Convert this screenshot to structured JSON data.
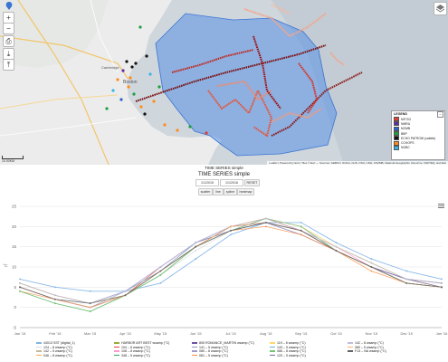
{
  "map": {
    "controls": [
      "+",
      "−",
      "⎙",
      "⤓",
      "⤒"
    ],
    "place_labels": [
      "Cambridge",
      "Boston"
    ],
    "legend": {
      "title": "LEGEND",
      "items": [
        {
          "label": "MITGG",
          "color": "#e53a2f"
        },
        {
          "label": "NMRA",
          "color": "#5e2ca5"
        },
        {
          "label": "NOMB",
          "color": "#2a63c9"
        },
        {
          "label": "BBP",
          "color": "#1d9e3e"
        },
        {
          "label": "ECHO PATROW (cableb)",
          "color": "#111111"
        },
        {
          "label": "CCHOPS",
          "color": "#ff8c1a"
        },
        {
          "label": "NGBC",
          "color": "#37b6e6"
        }
      ]
    },
    "attribution": "Leaflet | Powered by Esri | Tiles © Esri — Sources: GEBCO, NOAA, CHS, OSU, UNH, CSUMB, National Geographic, DeLorme, NAVTEQ, and Esri",
    "scale_label": "10.00KM"
  },
  "controls": {
    "title": "TIME SERIES simple",
    "subtitle": "TIME SERIES simple",
    "start_date": "1/1/2015",
    "end_date": "1/1/2016",
    "reset_label": "RESET",
    "chart_types": [
      "scatter",
      "line",
      "spline",
      "heatmap"
    ],
    "menu_icon": "hamburger-icon"
  },
  "chart_data": {
    "type": "line",
    "title": "",
    "xlabel": "",
    "ylabel": "°C",
    "x_ticks": [
      "Jan '15",
      "Feb '15",
      "Mar '15",
      "Apr '15",
      "May '15",
      "Jun '15",
      "Jul '15",
      "Aug '15",
      "Sep '15",
      "Oct '15",
      "Nov '15",
      "Dec '15",
      "Jan '16"
    ],
    "ylim": [
      -5,
      25
    ],
    "y_ticks": [
      25,
      20,
      15,
      10,
      5,
      0,
      -5
    ],
    "grid": true,
    "series": [
      {
        "name": "44013 SST (digital_1)",
        "color": "#7fb3e6",
        "values": [
          7,
          5,
          4,
          4,
          6,
          12,
          18,
          21,
          21,
          16,
          12,
          9,
          7
        ]
      },
      {
        "name": "124 – 8 wsamp (°C)",
        "color": "#d9d9d9",
        "values": [
          6,
          3,
          1,
          3,
          8,
          14,
          19,
          22,
          20,
          15,
          11,
          7,
          5
        ]
      },
      {
        "name": "142 – 5 wsamp (°C)",
        "color": "#c8b89a",
        "values": [
          5,
          2,
          1,
          3,
          9,
          15,
          19,
          21,
          19,
          14,
          10,
          7,
          5
        ]
      },
      {
        "name": "046 – 8 wsamp (°C)",
        "color": "#ffa64d",
        "values": [
          5,
          2,
          0,
          3,
          9,
          15,
          20,
          22,
          19,
          14,
          10,
          6,
          5
        ]
      },
      {
        "name": "HARBOR ART BEST wsamp (°C)",
        "color": "#9aaa3a",
        "values": [
          6,
          3,
          1,
          4,
          9,
          15,
          20,
          21,
          19,
          15,
          11,
          7,
          6
        ]
      },
      {
        "name": "104 – 8 wsamp (°C)",
        "color": "#e34a33",
        "values": [
          5,
          2,
          0,
          3,
          10,
          16,
          20,
          22,
          19,
          14,
          10,
          6,
          5
        ]
      },
      {
        "name": "108 – 8 wsamp (°C)",
        "color": "#ff99cc",
        "values": [
          5,
          2,
          1,
          4,
          9,
          16,
          20,
          21,
          19,
          15,
          10,
          7,
          5
        ]
      },
      {
        "name": "348 – 5 wsamp (°C)",
        "color": "#2ca25f",
        "values": [
          4,
          1,
          -1,
          3,
          8,
          15,
          19,
          21,
          19,
          14,
          10,
          6,
          5
        ]
      },
      {
        "name": "805 ROMANCE_MARTIN wsamp (°C)",
        "color": "#6a51a3",
        "values": [
          6,
          3,
          1,
          4,
          10,
          16,
          19,
          21,
          18,
          14,
          10,
          7,
          6
        ]
      },
      {
        "name": "141 – 5 wsamp (°C)",
        "color": "#8c96c6",
        "values": [
          5,
          2,
          0,
          3,
          9,
          15,
          19,
          22,
          20,
          14,
          10,
          6,
          5
        ]
      },
      {
        "name": "080 – 8 wsamp (°C)",
        "color": "#9e9ac8",
        "values": [
          5,
          2,
          0,
          4,
          10,
          16,
          20,
          21,
          18,
          14,
          10,
          7,
          5
        ]
      },
      {
        "name": "081 – 5 wsamp (°C)",
        "color": "#fd8d3c",
        "values": [
          4,
          2,
          0,
          3,
          9,
          15,
          19,
          20,
          18,
          14,
          9,
          6,
          5
        ]
      },
      {
        "name": "119 – 8 wsamp (°C)",
        "color": "#ffd966",
        "values": [
          6,
          3,
          1,
          3,
          9,
          15,
          20,
          22,
          20,
          15,
          11,
          7,
          5
        ]
      },
      {
        "name": "143 – 5 wsamp (°C)",
        "color": "#6baed6",
        "values": [
          5,
          2,
          1,
          4,
          9,
          16,
          20,
          21,
          19,
          14,
          10,
          6,
          5
        ]
      },
      {
        "name": "086 – 8 wsamp (°C)",
        "color": "#74c476",
        "values": [
          4,
          1,
          -1,
          3,
          8,
          15,
          19,
          22,
          20,
          14,
          10,
          6,
          5
        ]
      },
      {
        "name": "120 – 5 wsamp (°C)",
        "color": "#756bb1",
        "values": [
          5,
          2,
          0,
          3,
          9,
          15,
          20,
          21,
          19,
          14,
          10,
          7,
          5
        ]
      },
      {
        "name": "142 – 8 wsamp (°C)",
        "color": "#bcbddc",
        "values": [
          6,
          3,
          1,
          4,
          10,
          16,
          20,
          22,
          19,
          15,
          11,
          7,
          6
        ]
      },
      {
        "name": "080 – 5 wsamp (°C)",
        "color": "#fdae6b",
        "values": [
          5,
          2,
          0,
          3,
          9,
          15,
          20,
          21,
          19,
          14,
          10,
          6,
          5
        ]
      },
      {
        "name": "F13 – NA wsamp (°C)",
        "color": "#636363",
        "values": [
          5,
          2,
          1,
          3,
          9,
          15,
          19,
          21,
          19,
          14,
          10,
          6,
          5
        ]
      }
    ]
  }
}
